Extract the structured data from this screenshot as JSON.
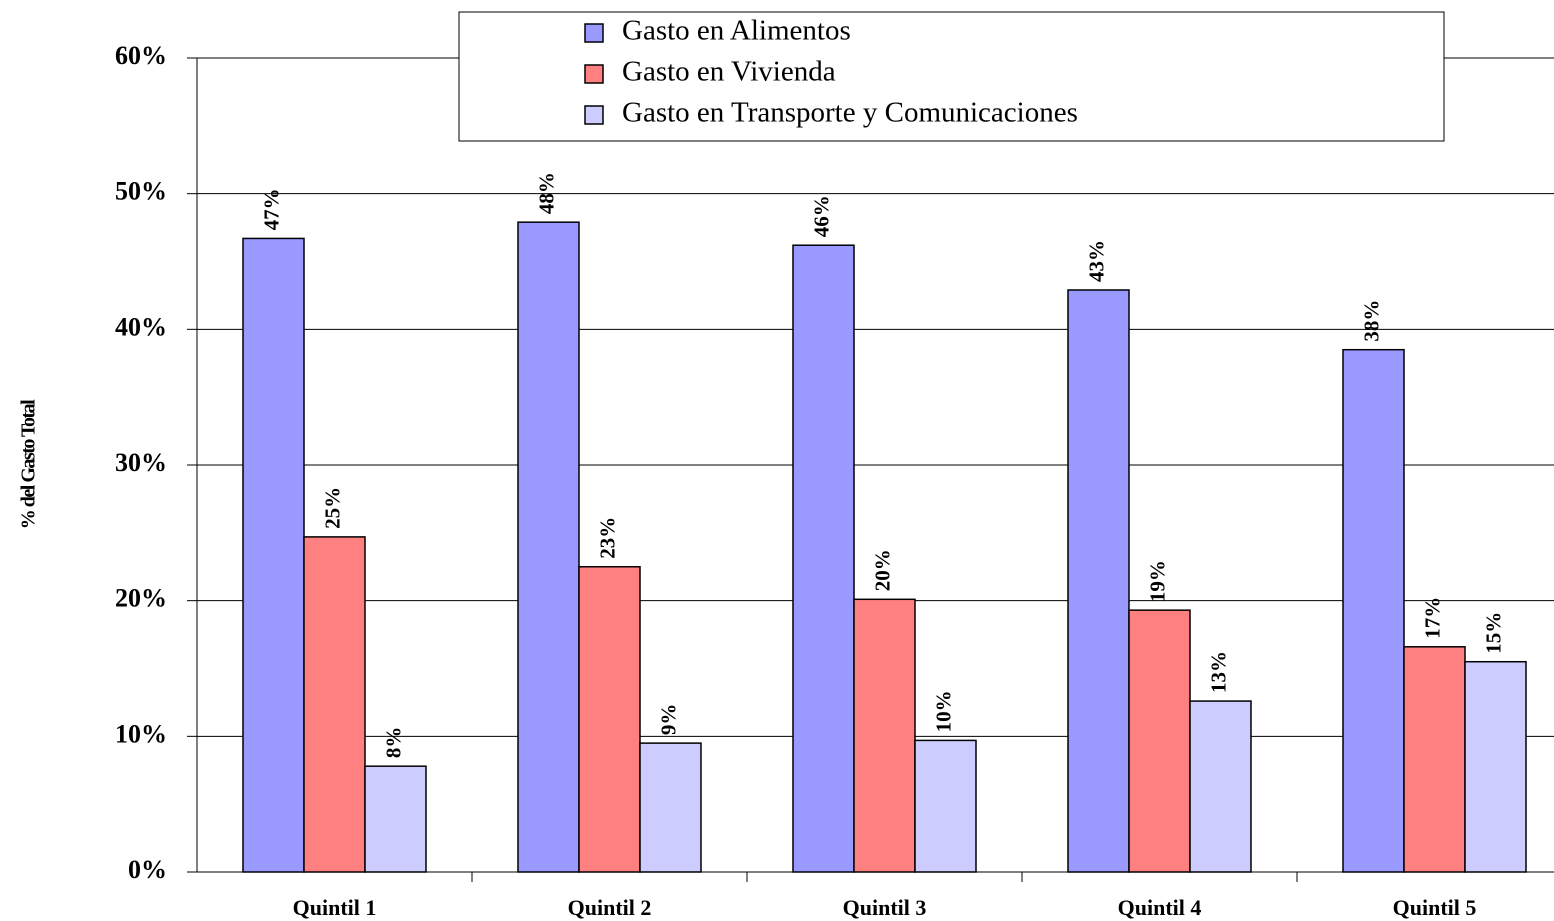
{
  "chart_data": {
    "type": "bar",
    "y_label": "% del Gasto Total",
    "categories": [
      "Quintil 1",
      "Quintil 2",
      "Quintil 3",
      "Quintil 4",
      "Quintil 5"
    ],
    "series": [
      {
        "name": "Gasto en Alimentos",
        "color": "#9999ff",
        "values": [
          46.7,
          47.9,
          46.2,
          42.9,
          38.5
        ],
        "value_labels": [
          "47%",
          "48%",
          "46%",
          "43%",
          "38%"
        ]
      },
      {
        "name": "Gasto en Vivienda",
        "color": "#ff8080",
        "values": [
          24.7,
          22.5,
          20.1,
          19.3,
          16.6
        ],
        "value_labels": [
          "25%",
          "23%",
          "20%",
          "19%",
          "17%"
        ]
      },
      {
        "name": "Gasto en Transporte y Comunicaciones",
        "color": "#ccccff",
        "values": [
          7.8,
          9.5,
          9.7,
          12.6,
          15.5
        ],
        "value_labels": [
          "8%",
          "9%",
          "10%",
          "13%",
          "15%"
        ]
      }
    ],
    "ylim": [
      0,
      60
    ],
    "yticks": [
      {
        "value": 0,
        "label": "0%"
      },
      {
        "value": 10,
        "label": "10%"
      },
      {
        "value": 20,
        "label": "20%"
      },
      {
        "value": 30,
        "label": "30%"
      },
      {
        "value": 40,
        "label": "40%"
      },
      {
        "value": 50,
        "label": "50%"
      },
      {
        "value": 60,
        "label": "60%"
      }
    ],
    "grid": true
  }
}
